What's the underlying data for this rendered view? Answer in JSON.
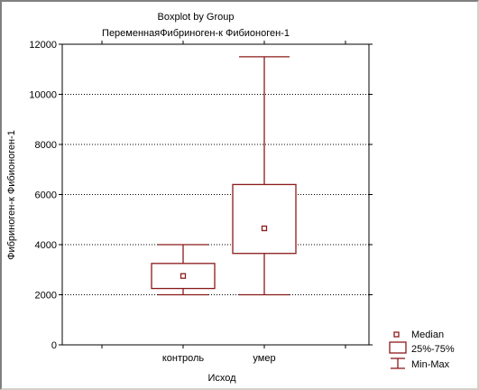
{
  "chart_data": {
    "type": "boxplot",
    "title": "Boxplot by Group",
    "subtitle": "ПеременнаяФибриноген-к Фибионоген-1",
    "xlabel": "Исход",
    "ylabel": "Фибриноген-к Фибионоген-1",
    "ylim": [
      0,
      12000
    ],
    "yticks": [
      0,
      2000,
      4000,
      6000,
      8000,
      10000,
      12000
    ],
    "categories": [
      "контроль",
      "умер"
    ],
    "boxes": [
      {
        "category": "контроль",
        "min": 2000,
        "q1": 2250,
        "median": 2750,
        "q3": 3250,
        "max": 4000
      },
      {
        "category": "умер",
        "min": 2000,
        "q1": 3650,
        "median": 4650,
        "q3": 6400,
        "max": 11500
      }
    ],
    "legend": {
      "position": "bottom-right",
      "items": [
        "Median",
        "25%-75%",
        "Min-Max"
      ]
    },
    "colors": {
      "box": "#8b1a1a",
      "axis": "#000000",
      "grid": "#000000"
    },
    "grid": true
  }
}
